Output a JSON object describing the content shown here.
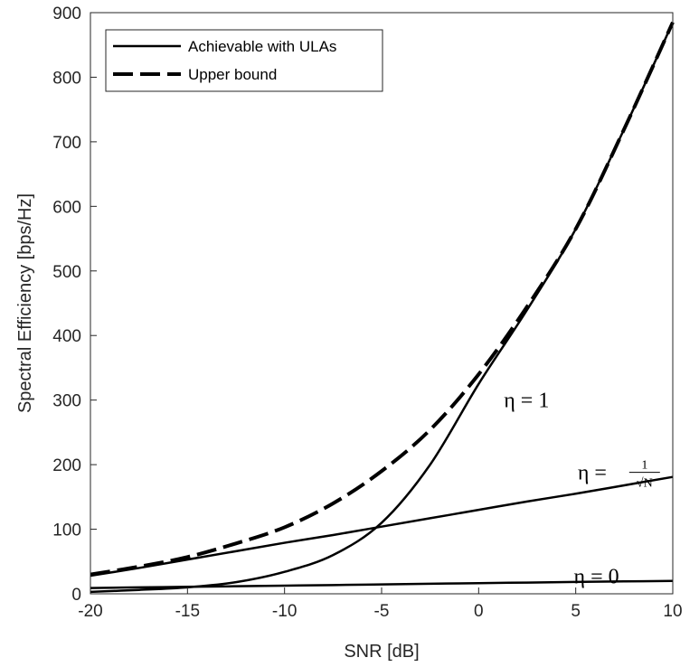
{
  "chart_data": {
    "type": "line",
    "title": "",
    "xlabel": "SNR [dB]",
    "ylabel": "Spectral Efficiency [bps/Hz]",
    "xlim": [
      -20,
      10
    ],
    "ylim": [
      0,
      900
    ],
    "xticks": [
      -20,
      -15,
      -10,
      -5,
      0,
      5,
      10
    ],
    "yticks": [
      0,
      100,
      200,
      300,
      400,
      500,
      600,
      700,
      800,
      900
    ],
    "grid": false,
    "legend_position": "top-left",
    "legend": [
      {
        "label": "Achievable with ULAs",
        "style": "solid"
      },
      {
        "label": "Upper bound",
        "style": "dashed"
      }
    ],
    "x": [
      -20,
      -17.5,
      -15,
      -12.5,
      -10,
      -7.5,
      -5,
      -2.5,
      0,
      2.5,
      5,
      7.5,
      10
    ],
    "series": [
      {
        "name": "Upper bound",
        "style": "dashed",
        "values": [
          30,
          42,
          57,
          78,
          103,
          140,
          190,
          254,
          340,
          445,
          565,
          720,
          885
        ]
      },
      {
        "name": "Achievable with ULAs, eta = 1",
        "style": "solid",
        "values": [
          3,
          6,
          10,
          18,
          34,
          60,
          110,
          200,
          325,
          440,
          565,
          720,
          885
        ]
      },
      {
        "name": "Achievable with ULAs, eta = 1/sqrt(N)",
        "style": "solid",
        "values": [
          28,
          40,
          53,
          66,
          79,
          91,
          104,
          117,
          130,
          143,
          155,
          168,
          181
        ]
      },
      {
        "name": "Achievable with ULAs, eta = 0",
        "style": "solid",
        "values": [
          9,
          9.9,
          10.8,
          11.7,
          12.6,
          13.5,
          14.5,
          15.5,
          16.5,
          17.4,
          18.3,
          19.2,
          20
        ]
      }
    ],
    "annotations": [
      {
        "text": "η = 1",
        "x": 1.3,
        "y": 300
      },
      {
        "text_prefix": "η =",
        "numerator": "1",
        "denominator": "√N",
        "x": 5.1,
        "y": 188
      },
      {
        "text": "η = 0",
        "x": 4.9,
        "y": 22
      }
    ]
  }
}
